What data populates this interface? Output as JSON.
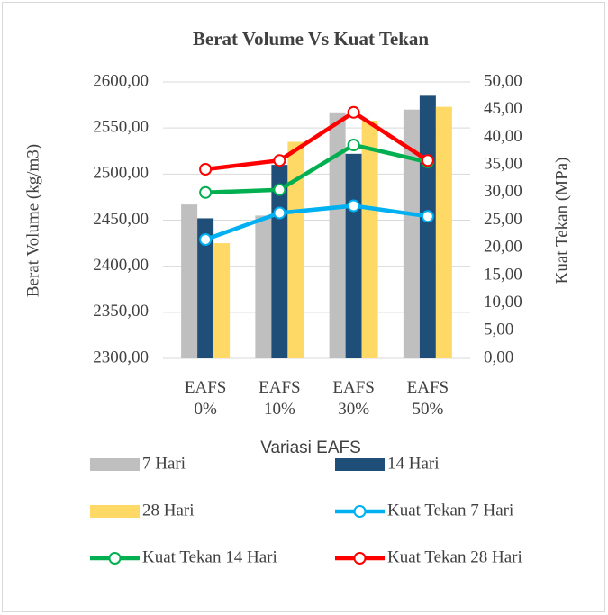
{
  "chart_data": {
    "type": "bar-line",
    "title": "Berat Volume Vs Kuat Tekan",
    "y_label": "Berat Volume (kg/m3)",
    "y2_label": "Kuat Tekan (MPa)",
    "x_label": "Variasi EAFS",
    "categories": [
      "EAFS 0%",
      "EAFS 10%",
      "EAFS 30%",
      "EAFS 50%"
    ],
    "ylim": [
      2300,
      2600
    ],
    "yticks": [
      {
        "value": 2300,
        "label": "2300,00"
      },
      {
        "value": 2350,
        "label": "2350,00"
      },
      {
        "value": 2400,
        "label": "2400,00"
      },
      {
        "value": 2450,
        "label": "2450,00"
      },
      {
        "value": 2500,
        "label": "2500,00"
      },
      {
        "value": 2550,
        "label": "2550,00"
      },
      {
        "value": 2600,
        "label": "2600,00"
      }
    ],
    "y2lim": [
      0,
      50
    ],
    "y2ticks": [
      {
        "value": 0,
        "label": "0,00"
      },
      {
        "value": 5,
        "label": "5,00"
      },
      {
        "value": 10,
        "label": "10,00"
      },
      {
        "value": 15,
        "label": "15,00"
      },
      {
        "value": 20,
        "label": "20,00"
      },
      {
        "value": 25,
        "label": "25,00"
      },
      {
        "value": 30,
        "label": "30,00"
      },
      {
        "value": 35,
        "label": "35,00"
      },
      {
        "value": 40,
        "label": "40,00"
      },
      {
        "value": 45,
        "label": "45,00"
      },
      {
        "value": 50,
        "label": "50,00"
      }
    ],
    "grid": true,
    "series": [
      {
        "name": "7 Hari",
        "kind": "bar",
        "color": "#bfbfbf",
        "values": [
          2467,
          2455,
          2567,
          2570
        ]
      },
      {
        "name": "14 Hari",
        "kind": "bar",
        "color": "#1f4e79",
        "values": [
          2452,
          2510,
          2522,
          2585
        ]
      },
      {
        "name": "28 Hari",
        "kind": "bar",
        "color": "#ffd966",
        "values": [
          2425,
          2535,
          2558,
          2573
        ]
      },
      {
        "name": "Kuat Tekan 7 Hari",
        "kind": "line",
        "axis": "y2",
        "color": "#00b0f0",
        "values": [
          21.5,
          26.3,
          27.6,
          25.7
        ]
      },
      {
        "name": "Kuat Tekan 14 Hari",
        "kind": "line",
        "axis": "y2",
        "color": "#00b050",
        "values": [
          30.0,
          30.5,
          38.6,
          35.5
        ]
      },
      {
        "name": "Kuat Tekan 28 Hari",
        "kind": "line",
        "axis": "y2",
        "color": "#ff0000",
        "values": [
          34.2,
          35.8,
          44.5,
          35.8
        ]
      }
    ]
  }
}
